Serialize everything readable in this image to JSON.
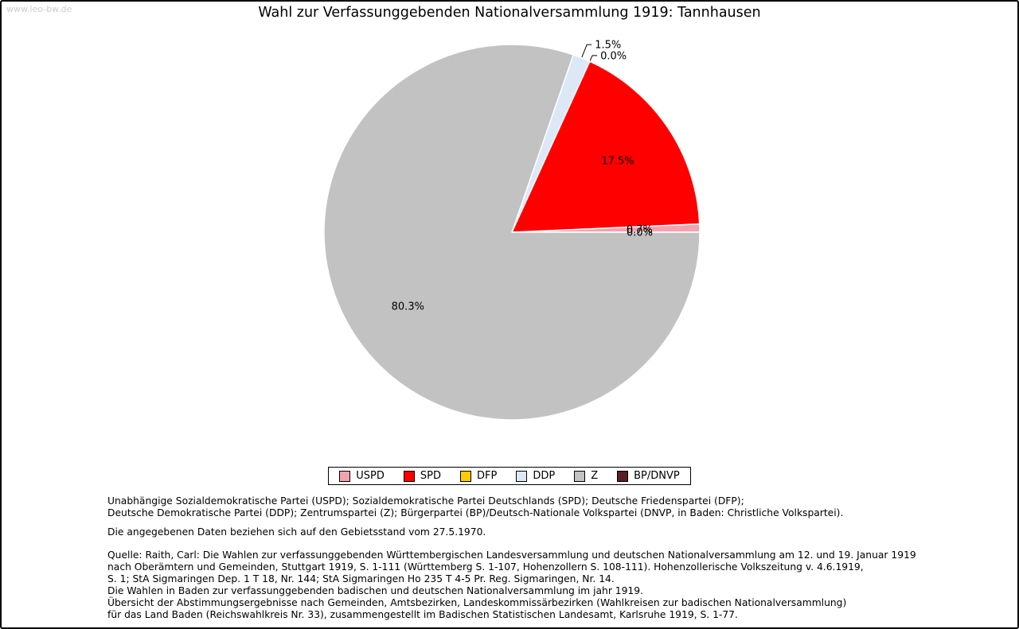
{
  "page": {
    "watermark": "www.leo-bw.de",
    "title": "Wahl zur Verfassunggebenden Nationalversammlung 1919: Tannhausen"
  },
  "chart_data": {
    "type": "pie",
    "title": "Wahl zur Verfassunggebenden Nationalversammlung 1919: Tannhausen",
    "unit": "percent",
    "direction": "counterclockwise",
    "start_angle_deg": 0,
    "legend_position": "bottom",
    "slices": [
      {
        "label": "USPD",
        "value": 0.7,
        "display": "0.7%",
        "color": "#f2a3ae",
        "label_style": "inside"
      },
      {
        "label": "SPD",
        "value": 17.5,
        "display": "17.5%",
        "color": "#ff0000",
        "label_style": "inside"
      },
      {
        "label": "DFP",
        "value": 0.0,
        "display": "0.0%",
        "color": "#ffcc00",
        "label_style": "callout",
        "callout_r": 8
      },
      {
        "label": "DDP",
        "value": 1.5,
        "display": "1.5%",
        "color": "#dde8f6",
        "label_style": "callout",
        "callout_r": 18
      },
      {
        "label": "Z",
        "value": 80.3,
        "display": "80.3%",
        "color": "#c2c2c2",
        "label_style": "inside"
      },
      {
        "label": "BP/DNVP",
        "value": 0.0,
        "display": "0.0%",
        "color": "#591e24",
        "label_style": "inside"
      }
    ]
  },
  "footer": {
    "lines": [
      "Unabhängige Sozialdemokratische Partei (USPD); Sozialdemokratische Partei Deutschlands (SPD); Deutsche Friedenspartei (DFP);",
      "Deutsche Demokratische Partei (DDP); Zentrumspartei (Z); Bürgerpartei (BP)/Deutsch-Nationale Volkspartei (DNVP, in Baden: Christliche Volkspartei).",
      "Die angegebenen Daten beziehen sich auf den Gebietsstand vom 27.5.1970.",
      "Quelle: Raith, Carl: Die Wahlen zur verfassunggebenden Württembergischen Landesversammlung und deutschen Nationalversammlung am 12. und 19. Januar 1919",
      "nach Oberämtern und Gemeinden, Stuttgart 1919, S. 1-111 (Württemberg S. 1-107, Hohenzollern S. 108-111). Hohenzollerische Volkszeitung v. 4.6.1919,",
      "S. 1; StA Sigmaringen Dep. 1 T 18, Nr. 144; StA Sigmaringen Ho 235 T 4-5 Pr. Reg. Sigmaringen, Nr. 14.",
      "Die Wahlen in Baden zur verfassunggebenden badischen und deutschen Nationalversammlung im jahr 1919.",
      "Übersicht der Abstimmungsergebnisse nach Gemeinden, Amtsbezirken, Landeskommissärbezirken (Wahlkreisen zur badischen Nationalversammlung)",
      "für das Land Baden (Reichswahlkreis Nr. 33), zusammengestellt im Badischen Statistischen Landesamt, Karlsruhe 1919, S. 1-77."
    ]
  }
}
